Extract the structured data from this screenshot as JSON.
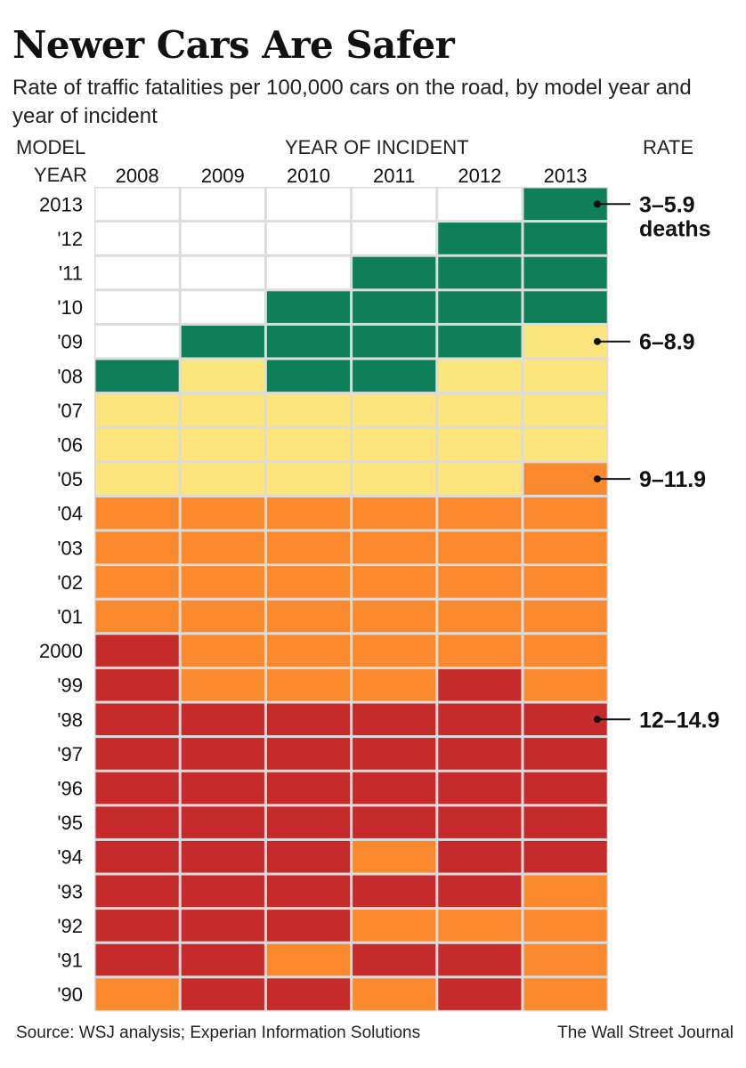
{
  "header": {
    "title": "Newer Cars Are Safer",
    "subtitle": "Rate of traffic fatalities per 100,000 cars on the road, by model year and year of incident",
    "model_year_label_1": "MODEL",
    "model_year_label_2": "YEAR",
    "incident_label": "YEAR OF INCIDENT",
    "rate_label": "RATE"
  },
  "footer": {
    "source": "Source: WSJ analysis; Experian Information Solutions",
    "credit": "The Wall Street Journal"
  },
  "colors": {
    "green": "#0e7f58",
    "yellow": "#fce57c",
    "orange": "#fb8a2e",
    "red": "#c52b2b",
    "none": "#ffffff",
    "gap": "#dcdcdc"
  },
  "chart_data": {
    "type": "heatmap",
    "title": "Newer Cars Are Safer",
    "xlabel": "YEAR OF INCIDENT",
    "ylabel": "MODEL YEAR",
    "x": [
      "2008",
      "2009",
      "2010",
      "2011",
      "2012",
      "2013"
    ],
    "y": [
      "2013",
      "'12",
      "'11",
      "'10",
      "'09",
      "'08",
      "'07",
      "'06",
      "'05",
      "'04",
      "'03",
      "'02",
      "'01",
      "2000",
      "'99",
      "'98",
      "'97",
      "'96",
      "'95",
      "'94",
      "'93",
      "'92",
      "'91",
      "'90"
    ],
    "categories": [
      {
        "key": "G",
        "label_1": "3–5.9",
        "label_2": "deaths",
        "anchor_row": 0
      },
      {
        "key": "Y",
        "label_1": "6–8.9",
        "label_2": "",
        "anchor_row": 4
      },
      {
        "key": "O",
        "label_1": "9–11.9",
        "label_2": "",
        "anchor_row": 8
      },
      {
        "key": "R",
        "label_1": "12–14.9",
        "label_2": "",
        "anchor_row": 15
      }
    ],
    "values": [
      [
        "-",
        "-",
        "-",
        "-",
        "-",
        "G"
      ],
      [
        "-",
        "-",
        "-",
        "-",
        "G",
        "G"
      ],
      [
        "-",
        "-",
        "-",
        "G",
        "G",
        "G"
      ],
      [
        "-",
        "-",
        "G",
        "G",
        "G",
        "G"
      ],
      [
        "-",
        "G",
        "G",
        "G",
        "G",
        "Y"
      ],
      [
        "G",
        "Y",
        "G",
        "G",
        "Y",
        "Y"
      ],
      [
        "Y",
        "Y",
        "Y",
        "Y",
        "Y",
        "Y"
      ],
      [
        "Y",
        "Y",
        "Y",
        "Y",
        "Y",
        "Y"
      ],
      [
        "Y",
        "Y",
        "Y",
        "Y",
        "Y",
        "O"
      ],
      [
        "O",
        "O",
        "O",
        "O",
        "O",
        "O"
      ],
      [
        "O",
        "O",
        "O",
        "O",
        "O",
        "O"
      ],
      [
        "O",
        "O",
        "O",
        "O",
        "O",
        "O"
      ],
      [
        "O",
        "O",
        "O",
        "O",
        "O",
        "O"
      ],
      [
        "R",
        "O",
        "O",
        "O",
        "O",
        "O"
      ],
      [
        "R",
        "O",
        "O",
        "O",
        "R",
        "O"
      ],
      [
        "R",
        "R",
        "R",
        "R",
        "R",
        "R"
      ],
      [
        "R",
        "R",
        "R",
        "R",
        "R",
        "R"
      ],
      [
        "R",
        "R",
        "R",
        "R",
        "R",
        "R"
      ],
      [
        "R",
        "R",
        "R",
        "R",
        "R",
        "R"
      ],
      [
        "R",
        "R",
        "R",
        "O",
        "R",
        "R"
      ],
      [
        "R",
        "R",
        "R",
        "R",
        "R",
        "O"
      ],
      [
        "R",
        "R",
        "R",
        "O",
        "O",
        "O"
      ],
      [
        "R",
        "R",
        "O",
        "R",
        "R",
        "O"
      ],
      [
        "O",
        "R",
        "R",
        "O",
        "R",
        "O"
      ]
    ]
  }
}
